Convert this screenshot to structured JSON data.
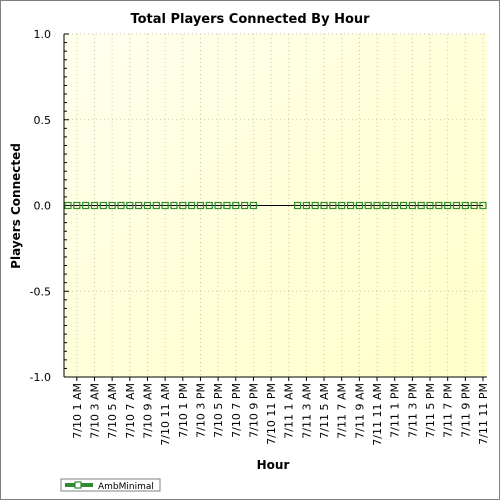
{
  "chart_data": {
    "type": "line",
    "title": "Total Players Connected By Hour",
    "xlabel": "Hour",
    "ylabel": "Players Connected",
    "ylim": [
      -1.0,
      1.0
    ],
    "yticks": [
      "1.0",
      "0.5",
      "0.0",
      "-0.5",
      "-1.0"
    ],
    "grid": true,
    "legend_position": "bottom-left",
    "x_tick_labels": [
      "7/10 1 AM",
      "7/10 3 AM",
      "7/10 5 AM",
      "7/10 7 AM",
      "7/10 9 AM",
      "7/10 11 AM",
      "7/10 1 PM",
      "7/10 3 PM",
      "7/10 5 PM",
      "7/10 7 PM",
      "7/10 9 PM",
      "7/10 11 PM",
      "7/11 1 AM",
      "7/11 3 AM",
      "7/11 5 AM",
      "7/11 7 AM",
      "7/11 9 AM",
      "7/11 11 AM",
      "7/11 1 PM",
      "7/11 3 PM",
      "7/11 5 PM",
      "7/11 7 PM",
      "7/11 9 PM",
      "7/11 11 PM"
    ],
    "series": [
      {
        "name": "AmbMinimal",
        "color": "#2e8b2e",
        "x": [
          "7/10 12 AM",
          "7/10 1 AM",
          "7/10 2 AM",
          "7/10 3 AM",
          "7/10 4 AM",
          "7/10 5 AM",
          "7/10 6 AM",
          "7/10 7 AM",
          "7/10 8 AM",
          "7/10 9 AM",
          "7/10 10 AM",
          "7/10 11 AM",
          "7/10 12 PM",
          "7/10 1 PM",
          "7/10 2 PM",
          "7/10 3 PM",
          "7/10 4 PM",
          "7/10 5 PM",
          "7/10 6 PM",
          "7/10 7 PM",
          "7/10 8 PM",
          "7/10 9 PM",
          "7/11 2 AM",
          "7/11 3 AM",
          "7/11 4 AM",
          "7/11 5 AM",
          "7/11 6 AM",
          "7/11 7 AM",
          "7/11 8 AM",
          "7/11 9 AM",
          "7/11 10 AM",
          "7/11 11 AM",
          "7/11 12 PM",
          "7/11 1 PM",
          "7/11 2 PM",
          "7/11 3 PM",
          "7/11 4 PM",
          "7/11 5 PM",
          "7/11 6 PM",
          "7/11 7 PM",
          "7/11 8 PM",
          "7/11 9 PM",
          "7/11 10 PM",
          "7/11 11 PM"
        ],
        "values": [
          0,
          0,
          0,
          0,
          0,
          0,
          0,
          0,
          0,
          0,
          0,
          0,
          0,
          0,
          0,
          0,
          0,
          0,
          0,
          0,
          0,
          0,
          0,
          0,
          0,
          0,
          0,
          0,
          0,
          0,
          0,
          0,
          0,
          0,
          0,
          0,
          0,
          0,
          0,
          0,
          0,
          0,
          0,
          0
        ]
      }
    ],
    "line_color": "#000000",
    "background": {
      "from": "#fffff0",
      "to": "#ffffcc"
    }
  }
}
